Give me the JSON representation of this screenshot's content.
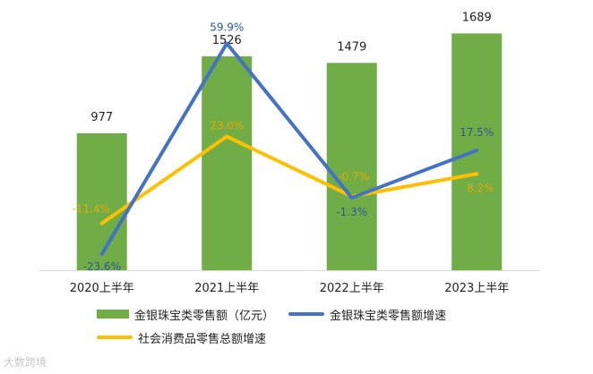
{
  "colors": {
    "bar": "#70AD47",
    "growth_line": "#4472C4",
    "social_line": "#FFC000",
    "growth_label": "#2E5597",
    "social_label": "#E6A800",
    "axis": "#D9D9D9",
    "text": "#222222"
  },
  "chart_data": {
    "type": "bar",
    "categories": [
      "2020上半年",
      "2021上半年",
      "2022上半年",
      "2023上半年"
    ],
    "ylim": [
      0,
      1800
    ],
    "y2lim": [
      -30,
      70
    ],
    "grid": false,
    "legend_position": "bottom",
    "series": [
      {
        "name": "金银珠宝类零售额（亿元）",
        "type": "bar",
        "axis": "left",
        "values": [
          977,
          1526,
          1479,
          1689
        ],
        "data_labels": [
          "977",
          "1526",
          "1479",
          "1689"
        ]
      },
      {
        "name": "金银珠宝类零售额增速",
        "type": "line",
        "axis": "right",
        "unit": "%",
        "values": [
          -23.6,
          59.9,
          -1.3,
          17.5
        ],
        "data_labels": [
          "-23.6%",
          "59.9%",
          "-1.3%",
          "17.5%"
        ]
      },
      {
        "name": "社会消费品零售总额增速",
        "type": "line",
        "axis": "right",
        "unit": "%",
        "values": [
          -11.4,
          23.0,
          -0.7,
          8.2
        ],
        "data_labels": [
          "-11.4%",
          "23.0%",
          "-0.7%",
          "8.2%"
        ]
      }
    ]
  },
  "watermark": "大数跨境"
}
